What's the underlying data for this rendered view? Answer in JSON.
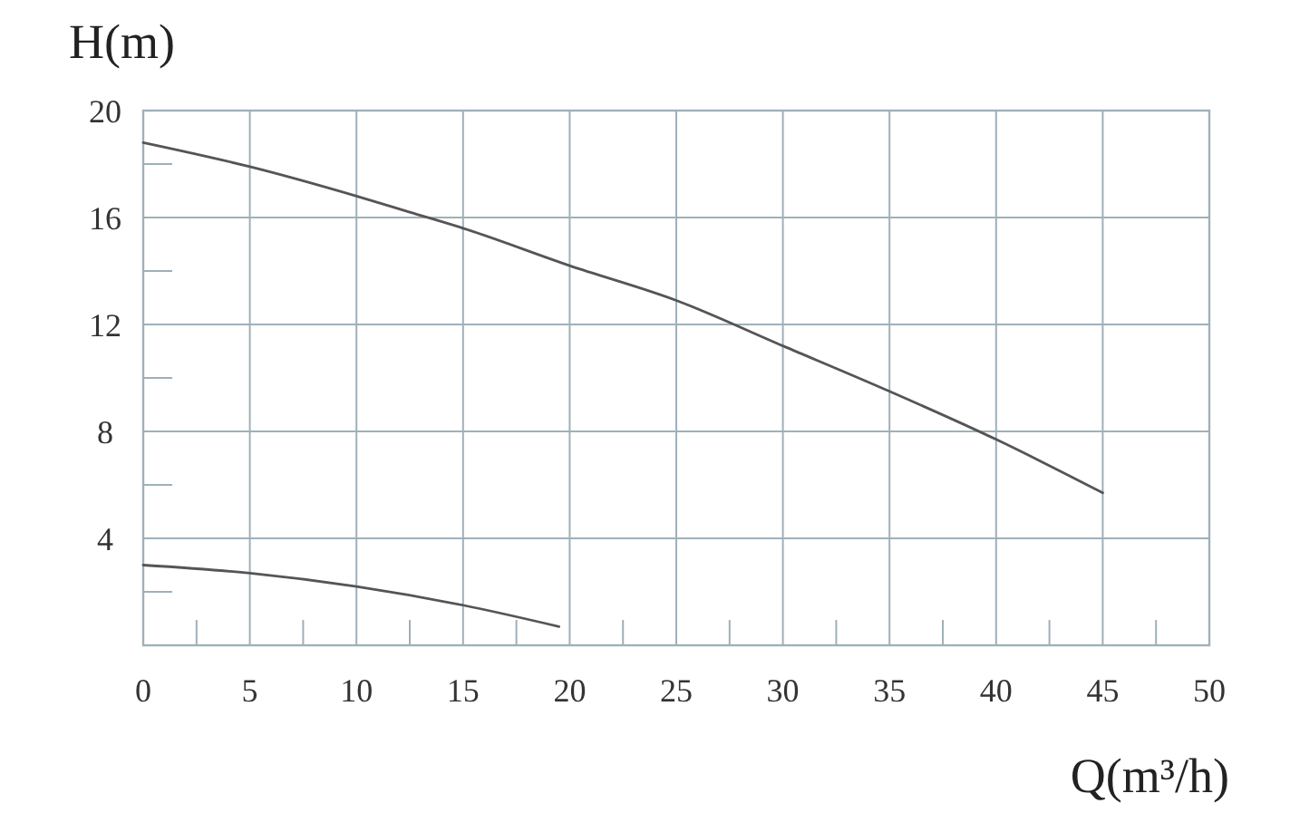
{
  "chart_data": {
    "type": "line",
    "xlabel": "Q(m³/h)",
    "ylabel": "H(m)",
    "xlim": [
      0,
      50
    ],
    "ylim": [
      0,
      20
    ],
    "xticks": [
      0,
      {
        "value": 2.5,
        "label": null
      },
      5,
      {
        "value": 7.5,
        "label": null
      },
      10,
      {
        "value": 12.5,
        "label": null
      },
      15,
      {
        "value": 17.5,
        "label": null
      },
      20,
      {
        "value": 22.5,
        "label": null
      },
      25,
      {
        "value": 27.5,
        "label": null
      },
      30,
      {
        "value": 32.5,
        "label": null
      },
      35,
      {
        "value": 37.5,
        "label": null
      },
      40,
      {
        "value": 42.5,
        "label": null
      },
      45,
      {
        "value": 47.5,
        "label": null
      },
      50
    ],
    "yticks": [
      {
        "value": 2,
        "label": null
      },
      4,
      {
        "value": 6,
        "label": null
      },
      8,
      {
        "value": 10,
        "label": null
      },
      12,
      {
        "value": 14,
        "label": null
      },
      16,
      {
        "value": 18,
        "label": null
      },
      20
    ],
    "grid": true,
    "series": [
      {
        "color": "#555555",
        "x": [
          0,
          5,
          10,
          12.5,
          15,
          20,
          25,
          30,
          35,
          40,
          45
        ],
        "values": [
          18.8,
          17.9,
          16.8,
          16.2,
          15.6,
          14.2,
          12.9,
          11.2,
          9.5,
          7.7,
          5.7
        ]
      },
      {
        "color": "#555555",
        "x": [
          0,
          5,
          10,
          15,
          19.5
        ],
        "values": [
          3.0,
          2.7,
          2.2,
          1.5,
          0.7
        ]
      }
    ]
  }
}
